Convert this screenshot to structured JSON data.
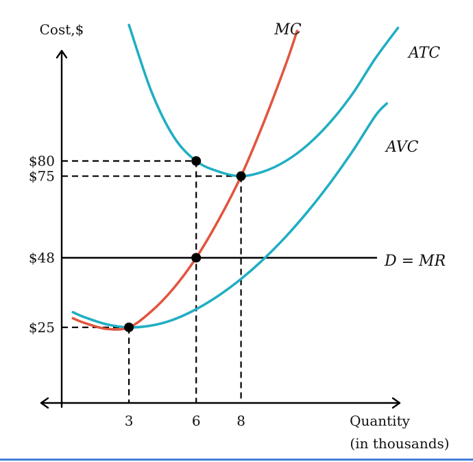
{
  "chart_data": {
    "type": "line",
    "ylabel": "Cost,$",
    "xlabel": [
      "Quantity",
      "(in thousands)"
    ],
    "x_ticks": [
      3,
      6,
      8
    ],
    "y_ticks": [
      {
        "value": 25,
        "label": "$25"
      },
      {
        "value": 48,
        "label": "$48"
      },
      {
        "value": 75,
        "label": "$75"
      },
      {
        "value": 80,
        "label": "$80"
      }
    ],
    "xlim": [
      0,
      15
    ],
    "ylim": [
      0,
      130
    ],
    "series": [
      {
        "name": "MC",
        "color": "#e2553f",
        "points": [
          [
            0.5,
            28
          ],
          [
            1,
            26.5
          ],
          [
            2,
            24.5
          ],
          [
            3,
            25
          ],
          [
            4,
            30.3
          ],
          [
            5,
            38
          ],
          [
            6,
            48
          ],
          [
            7,
            60.5
          ],
          [
            8,
            75
          ],
          [
            9,
            92.5
          ],
          [
            10,
            112
          ],
          [
            10.5,
            123
          ]
        ]
      },
      {
        "name": "ATC",
        "color": "#20aec3",
        "points": [
          [
            3,
            125
          ],
          [
            4,
            103
          ],
          [
            5,
            88
          ],
          [
            6,
            80
          ],
          [
            7,
            76.5
          ],
          [
            8,
            75
          ],
          [
            9,
            76.5
          ],
          [
            10,
            80
          ],
          [
            11,
            85.5
          ],
          [
            12,
            93
          ],
          [
            13,
            102.5
          ],
          [
            14,
            114
          ],
          [
            15,
            124
          ]
        ]
      },
      {
        "name": "AVC",
        "color": "#20aec3",
        "points": [
          [
            0.5,
            30
          ],
          [
            1,
            28.4
          ],
          [
            2,
            26
          ],
          [
            3,
            25
          ],
          [
            4,
            25.6
          ],
          [
            5,
            27.6
          ],
          [
            6,
            31
          ],
          [
            7,
            35.5
          ],
          [
            8,
            41
          ],
          [
            9,
            47.5
          ],
          [
            10,
            55
          ],
          [
            11,
            63.5
          ],
          [
            12,
            73
          ],
          [
            13,
            83.5
          ],
          [
            14,
            95
          ],
          [
            14.5,
            99
          ]
        ]
      }
    ],
    "demand": {
      "label": "D = MR",
      "value": 48
    },
    "marked_points": [
      [
        3,
        25
      ],
      [
        6,
        48
      ],
      [
        6,
        80
      ],
      [
        8,
        75
      ]
    ],
    "dashed_guides": [
      {
        "x": 3,
        "y": 25
      },
      {
        "x": 6,
        "y": 80
      },
      {
        "x": 8,
        "y": 75
      }
    ],
    "curve_labels": {
      "mc": "MC",
      "atc": "ATC",
      "avc": "AVC"
    }
  }
}
